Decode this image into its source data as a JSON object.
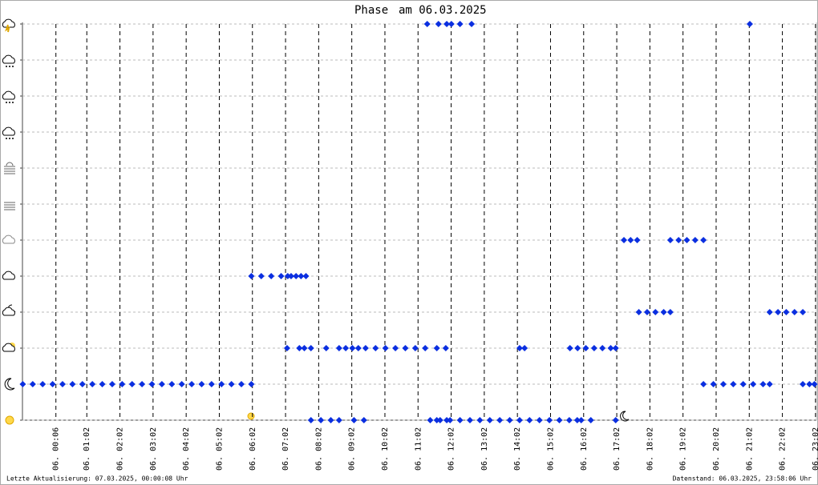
{
  "chart_data": {
    "type": "scatter",
    "title_label": "Phase",
    "title": "am 06.03.2025",
    "footer_left": "Letzte Aktualisierung: 07.03.2025, 00:00:08 Uhr",
    "footer_right": "Datenstand: 06.03.2025, 23:58:06 Uhr",
    "color": "#0b2fe0",
    "xlim": [
      -0.91,
      23.06
    ],
    "ylim": [
      0,
      11
    ],
    "xticks": [
      {
        "value": 0.1,
        "label": "06. 00:06"
      },
      {
        "value": 1.033,
        "label": "06. 01:02"
      },
      {
        "value": 2.033,
        "label": "06. 02:02"
      },
      {
        "value": 3.033,
        "label": "06. 03:02"
      },
      {
        "value": 4.033,
        "label": "06. 04:02"
      },
      {
        "value": 5.033,
        "label": "06. 05:02"
      },
      {
        "value": 6.033,
        "label": "06. 06:02"
      },
      {
        "value": 7.033,
        "label": "06. 07:02"
      },
      {
        "value": 8.033,
        "label": "06. 08:02"
      },
      {
        "value": 9.033,
        "label": "06. 09:02"
      },
      {
        "value": 10.033,
        "label": "06. 10:02"
      },
      {
        "value": 11.033,
        "label": "06. 11:02"
      },
      {
        "value": 12.033,
        "label": "06. 12:02"
      },
      {
        "value": 13.033,
        "label": "06. 13:02"
      },
      {
        "value": 14.033,
        "label": "06. 14:02"
      },
      {
        "value": 15.033,
        "label": "06. 15:02"
      },
      {
        "value": 16.033,
        "label": "06. 16:02"
      },
      {
        "value": 17.033,
        "label": "06. 17:02"
      },
      {
        "value": 18.033,
        "label": "06. 18:02"
      },
      {
        "value": 19.033,
        "label": "06. 19:02"
      },
      {
        "value": 20.033,
        "label": "06. 20:02"
      },
      {
        "value": 21.033,
        "label": "06. 21:02"
      },
      {
        "value": 22.033,
        "label": "06. 22:02"
      },
      {
        "value": 23.033,
        "label": "06. 23:02"
      }
    ],
    "yticks": [
      0,
      1,
      2,
      3,
      4,
      5,
      6,
      7,
      8,
      9,
      10,
      11
    ],
    "grid": true,
    "x": [
      -0.9,
      -0.6,
      -0.3,
      0,
      0.3,
      0.6,
      0.9,
      1.2,
      1.5,
      1.8,
      2.1,
      2.4,
      2.7,
      3.0,
      3.3,
      3.6,
      3.9,
      4.2,
      4.5,
      4.8,
      5.1,
      5.4,
      5.7,
      6.0,
      6.0,
      6.3,
      6.6,
      6.9,
      7.1,
      7.2,
      7.35,
      7.5,
      7.65,
      7.08,
      7.45,
      7.6,
      7.8,
      8.26,
      8.65,
      8.85,
      9.05,
      9.23,
      9.45,
      9.75,
      10.05,
      10.35,
      10.65,
      10.95,
      11.25,
      11.6,
      11.87,
      14.1,
      14.25,
      15.62,
      15.85,
      16.1,
      16.35,
      16.6,
      16.85,
      17.0,
      7.8,
      8.1,
      8.4,
      8.65,
      9.1,
      9.4,
      11.4,
      11.6,
      11.7,
      11.9,
      12.0,
      12.3,
      12.6,
      12.9,
      13.2,
      13.5,
      13.8,
      14.1,
      14.4,
      14.7,
      15.0,
      15.3,
      15.6,
      15.84,
      15.96,
      16.25,
      17.0,
      11.31,
      11.65,
      11.9,
      12.04,
      12.3,
      12.65,
      21.05,
      17.25,
      17.45,
      17.65,
      18.65,
      18.9,
      19.15,
      19.4,
      19.65,
      17.7,
      17.95,
      18.2,
      18.45,
      18.65,
      21.65,
      21.9,
      22.15,
      22.4,
      22.65,
      19.65,
      19.95,
      20.25,
      20.55,
      20.85,
      21.15,
      21.45,
      21.65,
      22.65,
      22.85,
      23.0
    ],
    "y": [
      1,
      1,
      1,
      1,
      1,
      1,
      1,
      1,
      1,
      1,
      1,
      1,
      1,
      1,
      1,
      1,
      1,
      1,
      1,
      1,
      1,
      1,
      1,
      1,
      4,
      4,
      4,
      4,
      4,
      4,
      4,
      4,
      4,
      2,
      2,
      2,
      2,
      2,
      2,
      2,
      2,
      2,
      2,
      2,
      2,
      2,
      2,
      2,
      2,
      2,
      2,
      2,
      2,
      2,
      2,
      2,
      2,
      2,
      2,
      2,
      0,
      0,
      0,
      0,
      0,
      0,
      0,
      0,
      0,
      0,
      0,
      0,
      0,
      0,
      0,
      0,
      0,
      0,
      0,
      0,
      0,
      0,
      0,
      0,
      0,
      0,
      0,
      11,
      11,
      11,
      11,
      11,
      11,
      11,
      5,
      5,
      5,
      5,
      5,
      5,
      5,
      5,
      3,
      3,
      3,
      3,
      3,
      3,
      3,
      3,
      3,
      3,
      1,
      1,
      1,
      1,
      1,
      1,
      1,
      1,
      1,
      1,
      1
    ]
  }
}
